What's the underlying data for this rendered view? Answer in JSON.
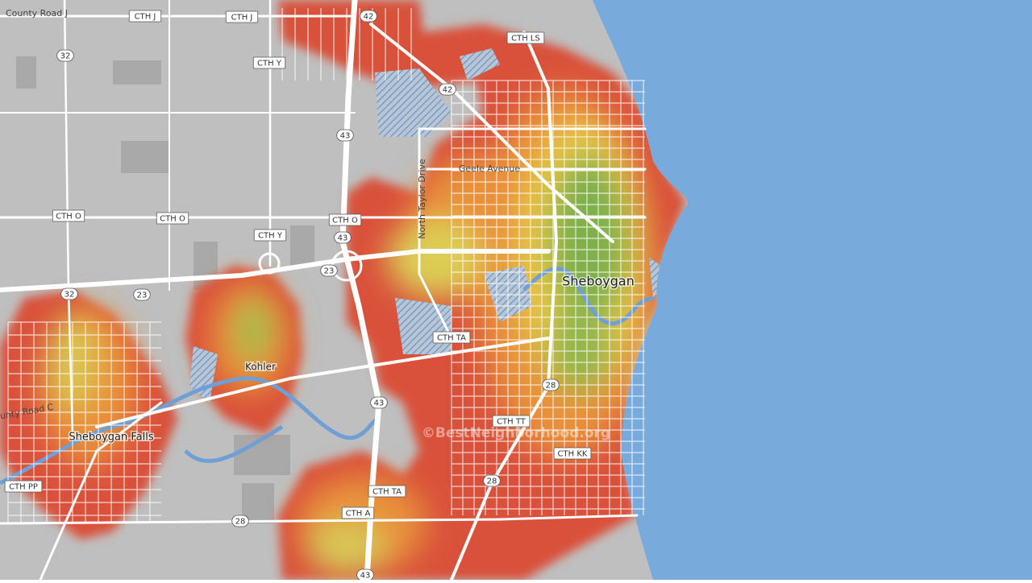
{
  "road_shields": [
    "CTH J",
    "CTH J",
    "42",
    "42",
    "CTH LS",
    "32",
    "CTH Y",
    "43",
    "CTH Y",
    "CTH O",
    "CTH O",
    "CTH O",
    "43",
    "23",
    "32",
    "23",
    "CTH TA",
    "43",
    "28",
    "CTH TT",
    "CTH KK",
    "28",
    "CTH PP",
    "CTH TA",
    "CTH A",
    "28",
    "43"
  ],
  "street_names": [
    "County Road J",
    "Geele Avenue",
    "North Taylor Drive",
    "County Road C"
  ],
  "places": [
    "Sheboygan",
    "Kohler",
    "Sheboygan Falls"
  ],
  "watermark": "©BestNeighborhood.org"
}
